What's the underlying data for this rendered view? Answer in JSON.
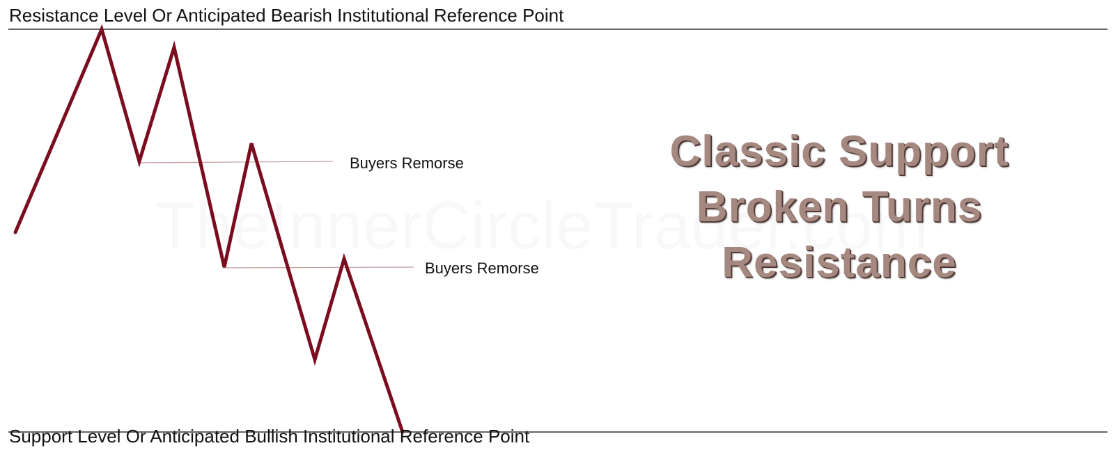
{
  "levels": {
    "resistance_label": "Resistance Level Or Anticipated Bearish Institutional Reference Point",
    "support_label": "Support Level Or Anticipated Bullish Institutional Reference Point"
  },
  "annotations": {
    "remorse_1": "Buyers Remorse",
    "remorse_2": "Buyers Remorse"
  },
  "watermark": "TheInnerCircleTrader.com",
  "title": {
    "line1": "Classic Support",
    "line2": "Broken Turns",
    "line3": "Resistance"
  },
  "colors": {
    "price_path": "#7a0d1f",
    "level_line": "#333333",
    "marker_line": "#c49a9a",
    "title_text": "#a58880"
  }
}
